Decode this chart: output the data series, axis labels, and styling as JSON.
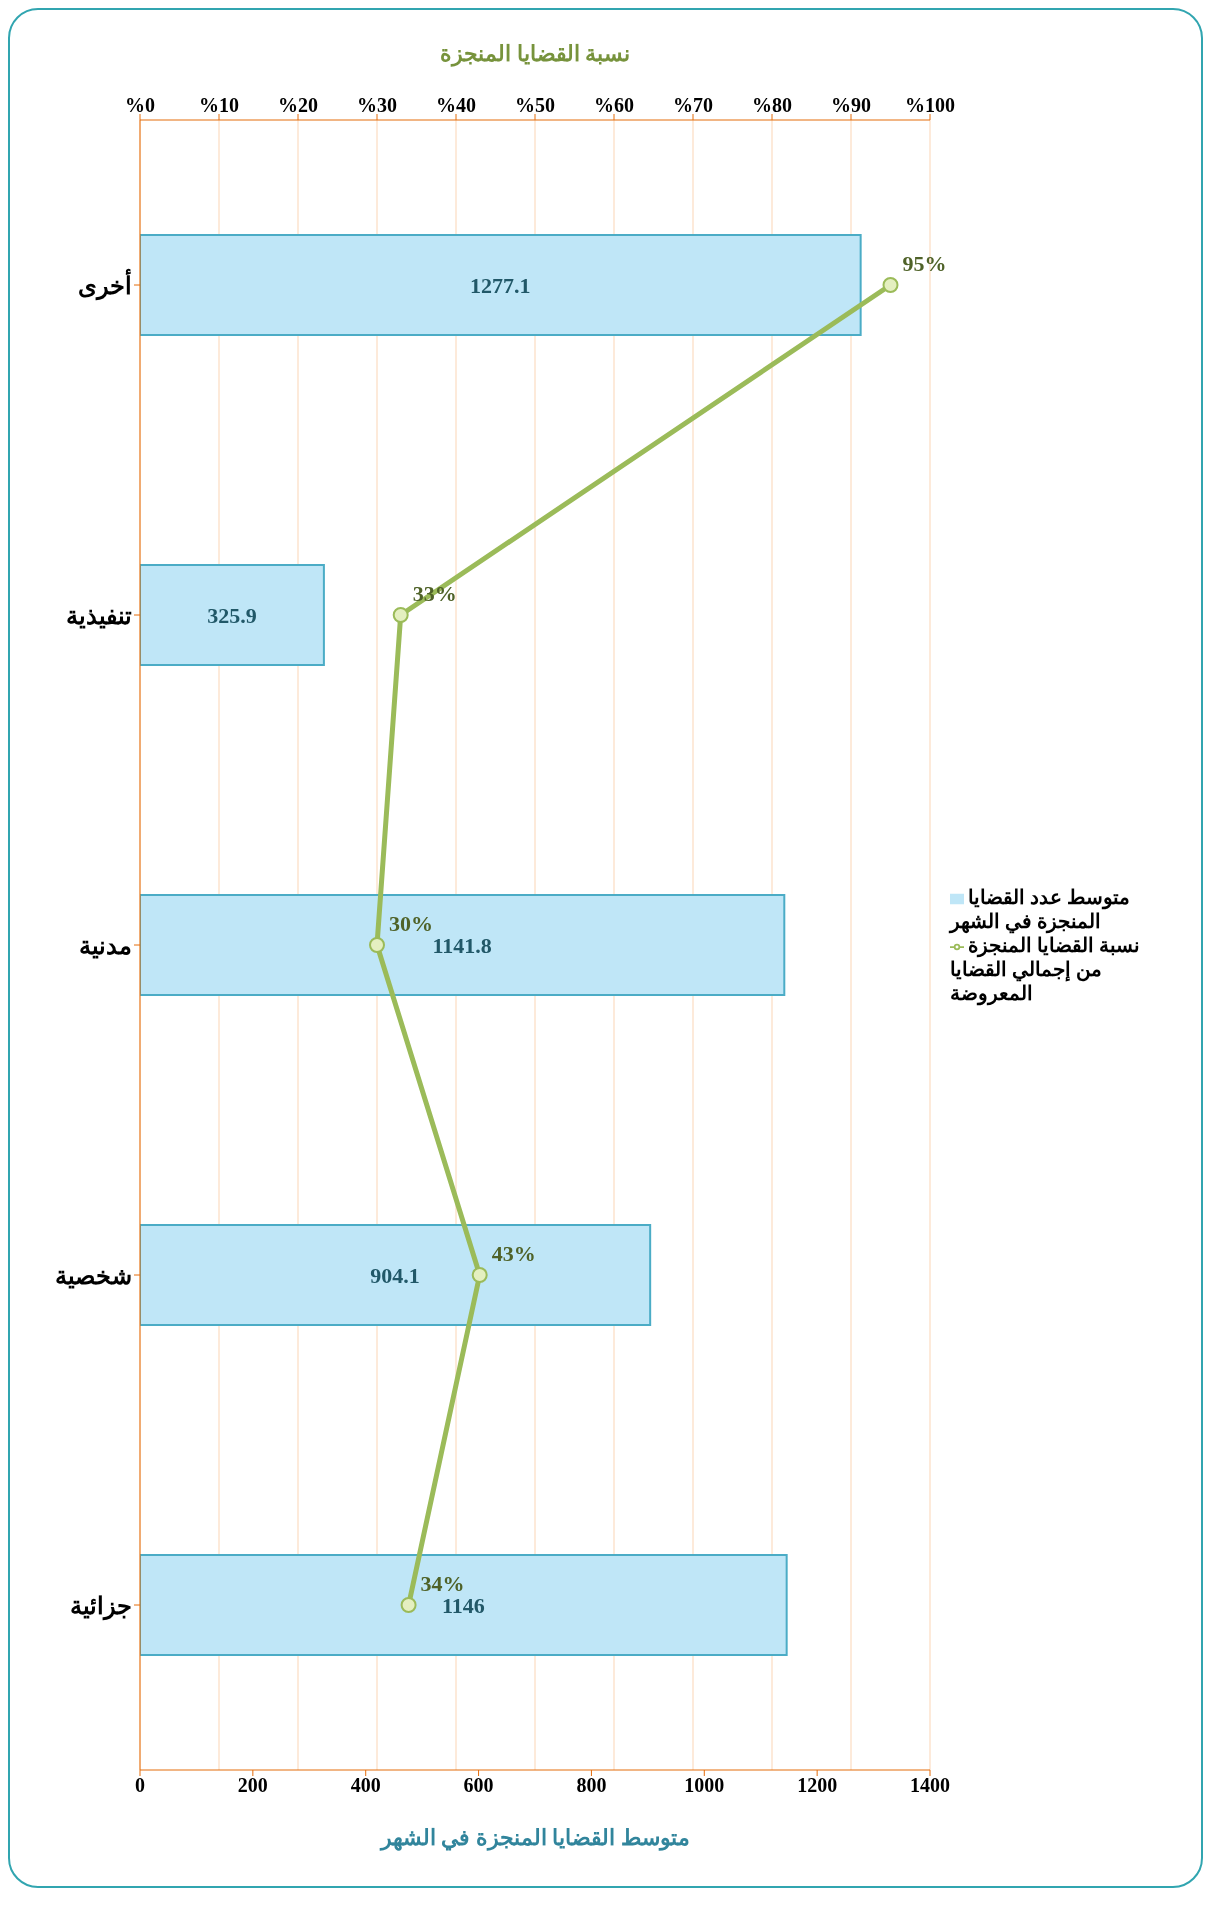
{
  "chart_data": {
    "type": "bar",
    "orientation": "horizontal",
    "xlabel": "متوسط القضايا المنجزة في الشهر",
    "x2label": "نسبة القضايا المنجزة",
    "categories": [
      "أخرى",
      "تنفيذية",
      "مدنية",
      "شخصية",
      "جزائية"
    ],
    "series": [
      {
        "name": "متوسط عدد القضايا المنجزة في الشهر",
        "color": "#bfe6f7",
        "values": [
          1277.1,
          325.9,
          1141.8,
          904.1,
          1146
        ],
        "value_labels": [
          "1277.1",
          "325.9",
          "1141.8",
          "904.1",
          "1146"
        ]
      },
      {
        "name": "نسبة القضايا المنجزة من إجمالي القضايا المعروضة",
        "type": "line",
        "axis": "x2",
        "color": "#9bbb59",
        "marker": "circle",
        "values": [
          95,
          33,
          30,
          43,
          34
        ],
        "value_labels": [
          "95%",
          "33%",
          "30%",
          "43%",
          "34%"
        ]
      }
    ],
    "xlim": [
      0,
      1400
    ],
    "xticks": [
      0,
      200,
      400,
      600,
      800,
      1000,
      1200,
      1400
    ],
    "x2lim": [
      0,
      100
    ],
    "x2ticks": [
      {
        "value": 0,
        "label": "%0"
      },
      {
        "value": 10,
        "label": "%10"
      },
      {
        "value": 20,
        "label": "%20"
      },
      {
        "value": 30,
        "label": "%30"
      },
      {
        "value": 40,
        "label": "%40"
      },
      {
        "value": 50,
        "label": "%50"
      },
      {
        "value": 60,
        "label": "%60"
      },
      {
        "value": 70,
        "label": "%70"
      },
      {
        "value": 80,
        "label": "%80"
      },
      {
        "value": 90,
        "label": "%90"
      },
      {
        "value": 100,
        "label": "%100"
      }
    ],
    "grid": "x",
    "legend": "right"
  }
}
